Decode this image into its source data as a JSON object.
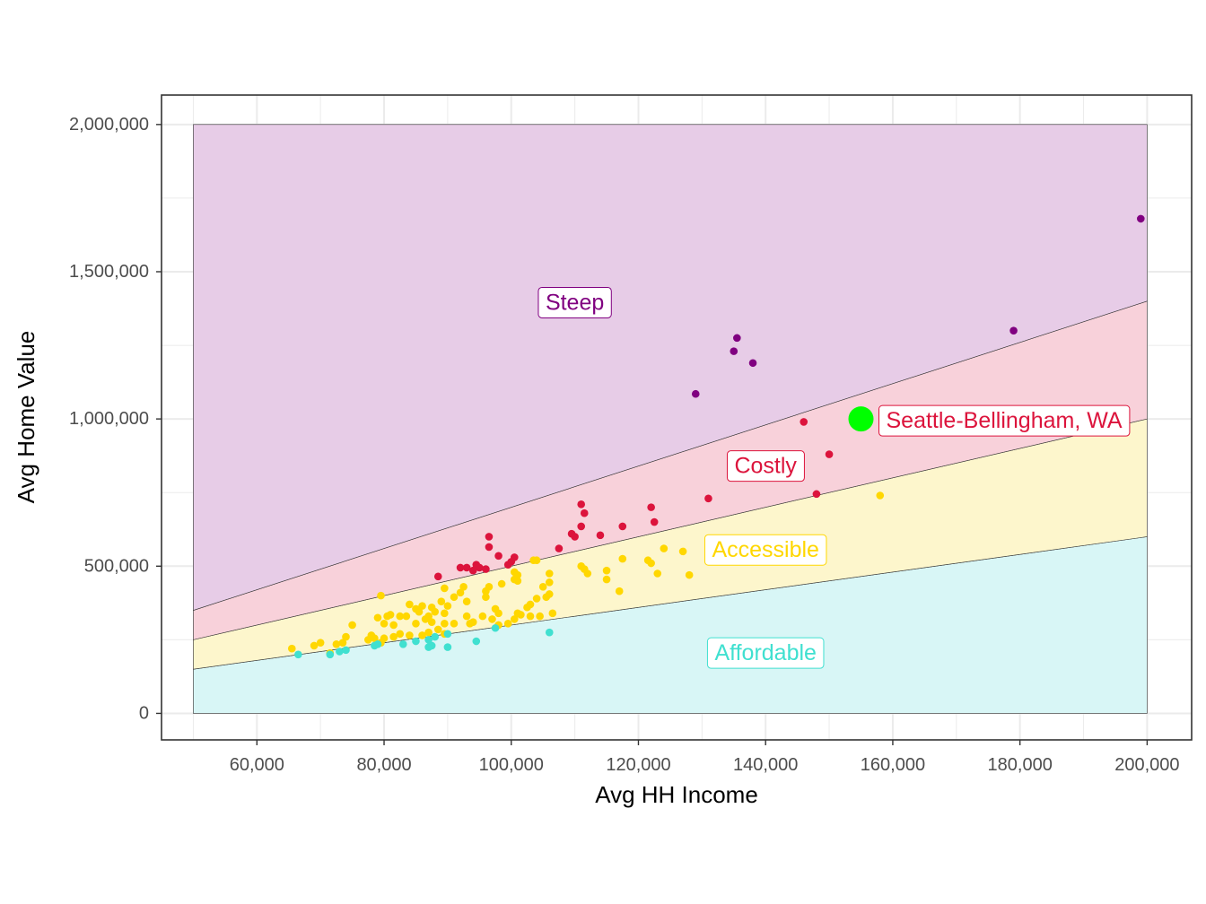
{
  "chart_data": {
    "type": "scatter",
    "title": "",
    "xlabel": "Avg HH Income",
    "ylabel": "Avg Home Value",
    "xlim": [
      45000,
      207000
    ],
    "ylim": [
      -90000,
      2100000
    ],
    "x_ticks": [
      60000,
      80000,
      100000,
      120000,
      140000,
      160000,
      180000,
      200000
    ],
    "x_tick_labels": [
      "60,000",
      "80,000",
      "100,000",
      "120,000",
      "140,000",
      "160,000",
      "180,000",
      "200,000"
    ],
    "y_ticks": [
      0,
      500000,
      1000000,
      1500000,
      2000000
    ],
    "y_tick_labels": [
      "0",
      "500,000",
      "1,000,000",
      "1,500,000",
      "2,000,000"
    ],
    "grid": true,
    "bands_x_range": [
      50000,
      200000
    ],
    "bands": [
      {
        "label": "Affordable",
        "color": "#40E0D0",
        "fill": "#d8f6f6",
        "y_low_start": 0,
        "y_low_end": 0,
        "y_high_start": 150000,
        "y_high_end": 600000,
        "label_x": 140000,
        "label_y": 205000
      },
      {
        "label": "Accessible",
        "color": "#FFD700",
        "fill": "#fdf6cc",
        "y_low_start": 150000,
        "y_low_end": 600000,
        "y_high_start": 250000,
        "y_high_end": 1000000,
        "label_x": 140000,
        "label_y": 555000
      },
      {
        "label": "Costly",
        "color": "#DC143C",
        "fill": "#f8d1da",
        "y_low_start": 250000,
        "y_low_end": 1000000,
        "y_high_start": 350000,
        "y_high_end": 1400000,
        "label_x": 140000,
        "label_y": 840000
      },
      {
        "label": "Steep",
        "color": "#800080",
        "fill": "#e7cce7",
        "y_low_start": 350000,
        "y_low_end": 1400000,
        "y_high_start": 2000000,
        "y_high_end": 2000000,
        "label_x": 110000,
        "label_y": 1395000
      }
    ],
    "highlight": {
      "name": "Seattle-Bellingham, WA",
      "x": 155000,
      "y": 1000000,
      "color": "#00FF00",
      "label_color": "#DC143C"
    },
    "series": [
      {
        "category": "Steep",
        "color": "#800080",
        "points": [
          [
            199000,
            1680000
          ],
          [
            179000,
            1300000
          ],
          [
            135500,
            1275000
          ],
          [
            138000,
            1190000
          ],
          [
            135000,
            1230000
          ],
          [
            129000,
            1085000
          ]
        ]
      },
      {
        "category": "Costly",
        "color": "#DC143C",
        "points": [
          [
            146000,
            990000
          ],
          [
            150000,
            880000
          ],
          [
            148000,
            745000
          ],
          [
            131000,
            730000
          ],
          [
            122000,
            700000
          ],
          [
            122500,
            650000
          ],
          [
            117500,
            635000
          ],
          [
            111000,
            710000
          ],
          [
            111500,
            680000
          ],
          [
            111000,
            635000
          ],
          [
            110000,
            600000
          ],
          [
            109500,
            610000
          ],
          [
            114000,
            605000
          ],
          [
            107500,
            560000
          ],
          [
            96500,
            600000
          ],
          [
            96500,
            565000
          ],
          [
            98000,
            535000
          ],
          [
            100500,
            530000
          ],
          [
            100000,
            515000
          ],
          [
            99500,
            505000
          ],
          [
            94500,
            505000
          ],
          [
            95000,
            495000
          ],
          [
            96000,
            490000
          ],
          [
            94000,
            485000
          ],
          [
            93000,
            495000
          ],
          [
            92000,
            495000
          ],
          [
            88500,
            465000
          ]
        ]
      },
      {
        "category": "Accessible",
        "color": "#FFD700",
        "points": [
          [
            158000,
            740000
          ],
          [
            124000,
            560000
          ],
          [
            127000,
            550000
          ],
          [
            117500,
            525000
          ],
          [
            121500,
            520000
          ],
          [
            122000,
            510000
          ],
          [
            123000,
            475000
          ],
          [
            128000,
            470000
          ],
          [
            111500,
            490000
          ],
          [
            111000,
            500000
          ],
          [
            112000,
            475000
          ],
          [
            115000,
            485000
          ],
          [
            115000,
            455000
          ],
          [
            117000,
            415000
          ],
          [
            103500,
            520000
          ],
          [
            104000,
            520000
          ],
          [
            100500,
            480000
          ],
          [
            101000,
            470000
          ],
          [
            106000,
            475000
          ],
          [
            100500,
            455000
          ],
          [
            101000,
            450000
          ],
          [
            106000,
            445000
          ],
          [
            105000,
            430000
          ],
          [
            106000,
            405000
          ],
          [
            105500,
            395000
          ],
          [
            104000,
            390000
          ],
          [
            103000,
            370000
          ],
          [
            102500,
            360000
          ],
          [
            98500,
            440000
          ],
          [
            96500,
            430000
          ],
          [
            96000,
            415000
          ],
          [
            96000,
            395000
          ],
          [
            97500,
            355000
          ],
          [
            98000,
            340000
          ],
          [
            101000,
            340000
          ],
          [
            101500,
            335000
          ],
          [
            103000,
            330000
          ],
          [
            104500,
            330000
          ],
          [
            106500,
            340000
          ],
          [
            92500,
            430000
          ],
          [
            92000,
            410000
          ],
          [
            89500,
            425000
          ],
          [
            91000,
            395000
          ],
          [
            93000,
            380000
          ],
          [
            90000,
            365000
          ],
          [
            89000,
            380000
          ],
          [
            87500,
            360000
          ],
          [
            86000,
            365000
          ],
          [
            85000,
            355000
          ],
          [
            84000,
            370000
          ],
          [
            85500,
            345000
          ],
          [
            88000,
            345000
          ],
          [
            89500,
            340000
          ],
          [
            87000,
            330000
          ],
          [
            86500,
            320000
          ],
          [
            85000,
            305000
          ],
          [
            87500,
            310000
          ],
          [
            89500,
            305000
          ],
          [
            91000,
            305000
          ],
          [
            93500,
            305000
          ],
          [
            94000,
            310000
          ],
          [
            93000,
            330000
          ],
          [
            95500,
            330000
          ],
          [
            97000,
            320000
          ],
          [
            98000,
            300000
          ],
          [
            99500,
            305000
          ],
          [
            100500,
            320000
          ],
          [
            89500,
            270000
          ],
          [
            88500,
            285000
          ],
          [
            87000,
            275000
          ],
          [
            86000,
            265000
          ],
          [
            84000,
            265000
          ],
          [
            82500,
            270000
          ],
          [
            81500,
            260000
          ],
          [
            79500,
            400000
          ],
          [
            79000,
            325000
          ],
          [
            80500,
            330000
          ],
          [
            81000,
            335000
          ],
          [
            82500,
            330000
          ],
          [
            83500,
            330000
          ],
          [
            80000,
            305000
          ],
          [
            81500,
            300000
          ],
          [
            78000,
            265000
          ],
          [
            77500,
            250000
          ],
          [
            78500,
            255000
          ],
          [
            79500,
            240000
          ],
          [
            80000,
            255000
          ],
          [
            75000,
            300000
          ],
          [
            74000,
            260000
          ],
          [
            73500,
            240000
          ],
          [
            72500,
            235000
          ],
          [
            70000,
            240000
          ],
          [
            69000,
            230000
          ],
          [
            65500,
            220000
          ],
          [
            71500,
            205000
          ]
        ]
      },
      {
        "category": "Affordable",
        "color": "#40E0D0",
        "points": [
          [
            66500,
            200000
          ],
          [
            71500,
            200000
          ],
          [
            73000,
            210000
          ],
          [
            74000,
            215000
          ],
          [
            78500,
            230000
          ],
          [
            79000,
            235000
          ],
          [
            83000,
            235000
          ],
          [
            85000,
            245000
          ],
          [
            87000,
            250000
          ],
          [
            87500,
            230000
          ],
          [
            87000,
            225000
          ],
          [
            90000,
            225000
          ],
          [
            88000,
            260000
          ],
          [
            90000,
            270000
          ],
          [
            94500,
            245000
          ],
          [
            97500,
            290000
          ],
          [
            106000,
            275000
          ]
        ]
      }
    ]
  }
}
